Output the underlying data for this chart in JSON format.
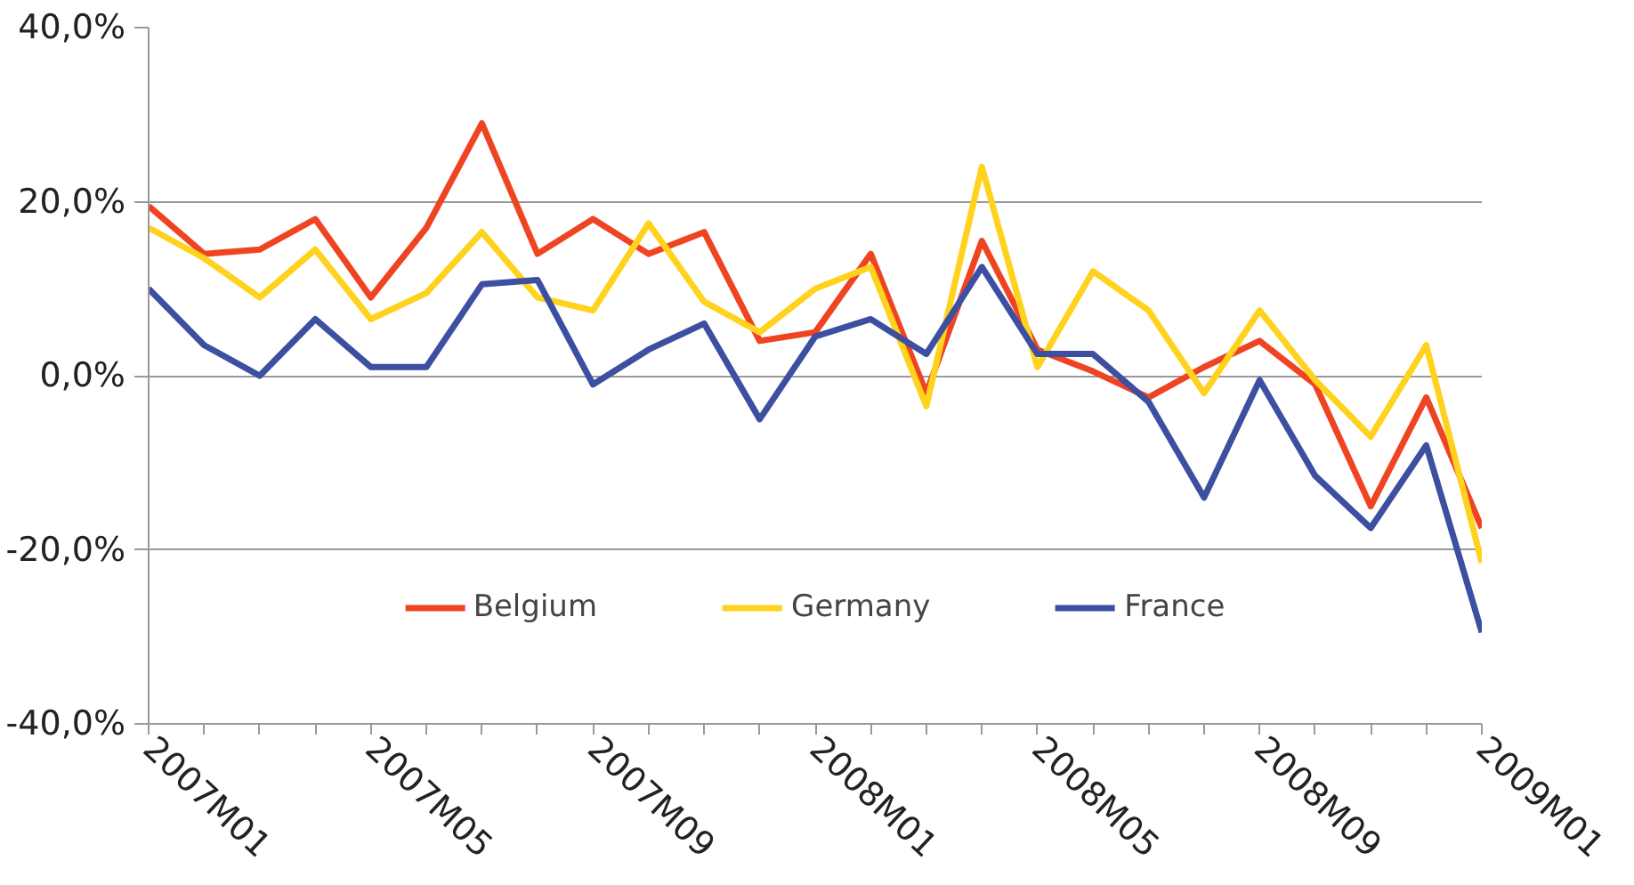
{
  "chart_data": {
    "type": "line",
    "categories": [
      "2007M01",
      null,
      null,
      null,
      "2007M05",
      null,
      null,
      null,
      "2007M09",
      null,
      null,
      null,
      "2008M01",
      null,
      null,
      null,
      "2008M05",
      null,
      null,
      null,
      "2008M09",
      null,
      null,
      null,
      "2009M01"
    ],
    "series": [
      {
        "name": "Belgium",
        "color": "#ee4422",
        "values": [
          19.5,
          14,
          14.5,
          18,
          9,
          17,
          29,
          14,
          18,
          14,
          16.5,
          4,
          5,
          14,
          -2,
          15.5,
          3,
          0.5,
          -2.5,
          1,
          4,
          -1,
          -15,
          -2.5,
          -17.5
        ]
      },
      {
        "name": "Germany",
        "color": "#ffd21e",
        "values": [
          17,
          13.5,
          9,
          14.5,
          6.5,
          9.5,
          16.5,
          9,
          7.5,
          17.5,
          8.5,
          5,
          10,
          12.5,
          -3.5,
          24,
          1,
          12,
          7.5,
          -2,
          7.5,
          -0.5,
          -7,
          3.5,
          -21.5
        ]
      },
      {
        "name": "France",
        "color": "#3c4fa0",
        "values": [
          10,
          3.5,
          0,
          6.5,
          1,
          1,
          10.5,
          11,
          -1,
          3,
          6,
          -5,
          4.5,
          6.5,
          2.5,
          12.5,
          2.5,
          2.5,
          -3,
          -14,
          -0.5,
          -11.5,
          -17.5,
          -8,
          -29.5
        ]
      }
    ],
    "ylim": [
      -40,
      40
    ],
    "yticks": [
      {
        "value": -40,
        "label": "-40,0%"
      },
      {
        "value": -20,
        "label": "-20,0%"
      },
      {
        "value": 0,
        "label": "0,0%"
      },
      {
        "value": 20,
        "label": "20,0%"
      },
      {
        "value": 40,
        "label": "40,0%"
      }
    ],
    "grid": "y",
    "legend": "bottom",
    "marker": "none",
    "line_style": "solid"
  }
}
